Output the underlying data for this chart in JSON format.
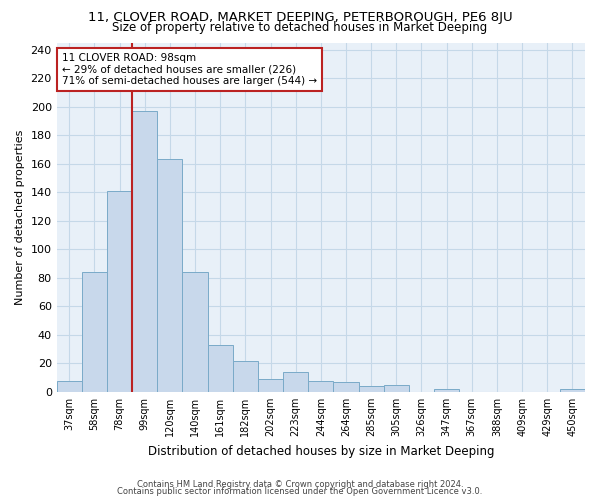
{
  "title": "11, CLOVER ROAD, MARKET DEEPING, PETERBOROUGH, PE6 8JU",
  "subtitle": "Size of property relative to detached houses in Market Deeping",
  "xlabel": "Distribution of detached houses by size in Market Deeping",
  "ylabel": "Number of detached properties",
  "bar_color": "#c8d8eb",
  "bar_edge_color": "#7aaac8",
  "bar_edge_width": 0.7,
  "grid_color": "#c5d8e8",
  "background_color": "#e8f0f8",
  "categories": [
    "37sqm",
    "58sqm",
    "78sqm",
    "99sqm",
    "120sqm",
    "140sqm",
    "161sqm",
    "182sqm",
    "202sqm",
    "223sqm",
    "244sqm",
    "264sqm",
    "285sqm",
    "305sqm",
    "326sqm",
    "347sqm",
    "367sqm",
    "388sqm",
    "409sqm",
    "429sqm",
    "450sqm"
  ],
  "values": [
    8,
    84,
    141,
    197,
    163,
    84,
    33,
    22,
    9,
    14,
    8,
    7,
    4,
    5,
    0,
    2,
    0,
    0,
    0,
    0,
    2
  ],
  "ylim": [
    0,
    245
  ],
  "yticks": [
    0,
    20,
    40,
    60,
    80,
    100,
    120,
    140,
    160,
    180,
    200,
    220,
    240
  ],
  "property_bar_index": 3,
  "vline_color": "#bb2222",
  "annotation_box_color": "#ffffff",
  "annotation_box_edge_color": "#bb2222",
  "annotation_text1": "11 CLOVER ROAD: 98sqm",
  "annotation_text2": "← 29% of detached houses are smaller (226)",
  "annotation_text3": "71% of semi-detached houses are larger (544) →",
  "footer1": "Contains HM Land Registry data © Crown copyright and database right 2024.",
  "footer2": "Contains public sector information licensed under the Open Government Licence v3.0."
}
